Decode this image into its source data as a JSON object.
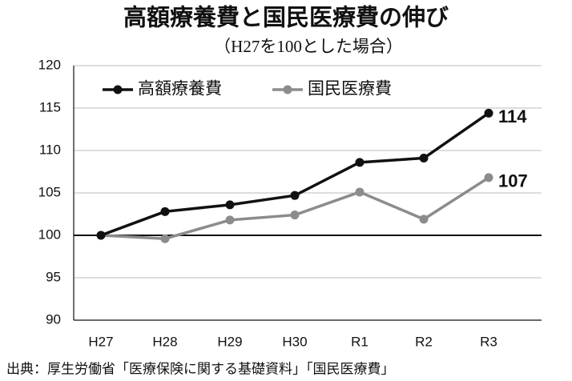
{
  "chart_data": {
    "type": "line",
    "title": "高額療養費と国民医療費の伸び",
    "subtitle": "（H27を100とした場合）",
    "source": "出典：厚生労働省「医療保険に関する基礎資料」「国民医療費」",
    "categories": [
      "H27",
      "H28",
      "H29",
      "H30",
      "R1",
      "R2",
      "R3"
    ],
    "series": [
      {
        "name": "高額療養費",
        "color": "#111111",
        "values": [
          100,
          102.8,
          103.6,
          104.7,
          108.6,
          109.1,
          114.4
        ],
        "value_labels": [
          null,
          null,
          null,
          null,
          null,
          null,
          "114"
        ]
      },
      {
        "name": "国民医療費",
        "color": "#8c8c8c",
        "values": [
          100,
          99.6,
          101.8,
          102.4,
          105.1,
          101.9,
          106.8
        ],
        "value_labels": [
          null,
          null,
          null,
          null,
          null,
          null,
          "107"
        ]
      }
    ],
    "ylim": [
      90,
      120
    ],
    "yticks": [
      90,
      95,
      100,
      105,
      110,
      115,
      120
    ],
    "reference_line": 100,
    "grid": true,
    "legend": "top-left"
  }
}
